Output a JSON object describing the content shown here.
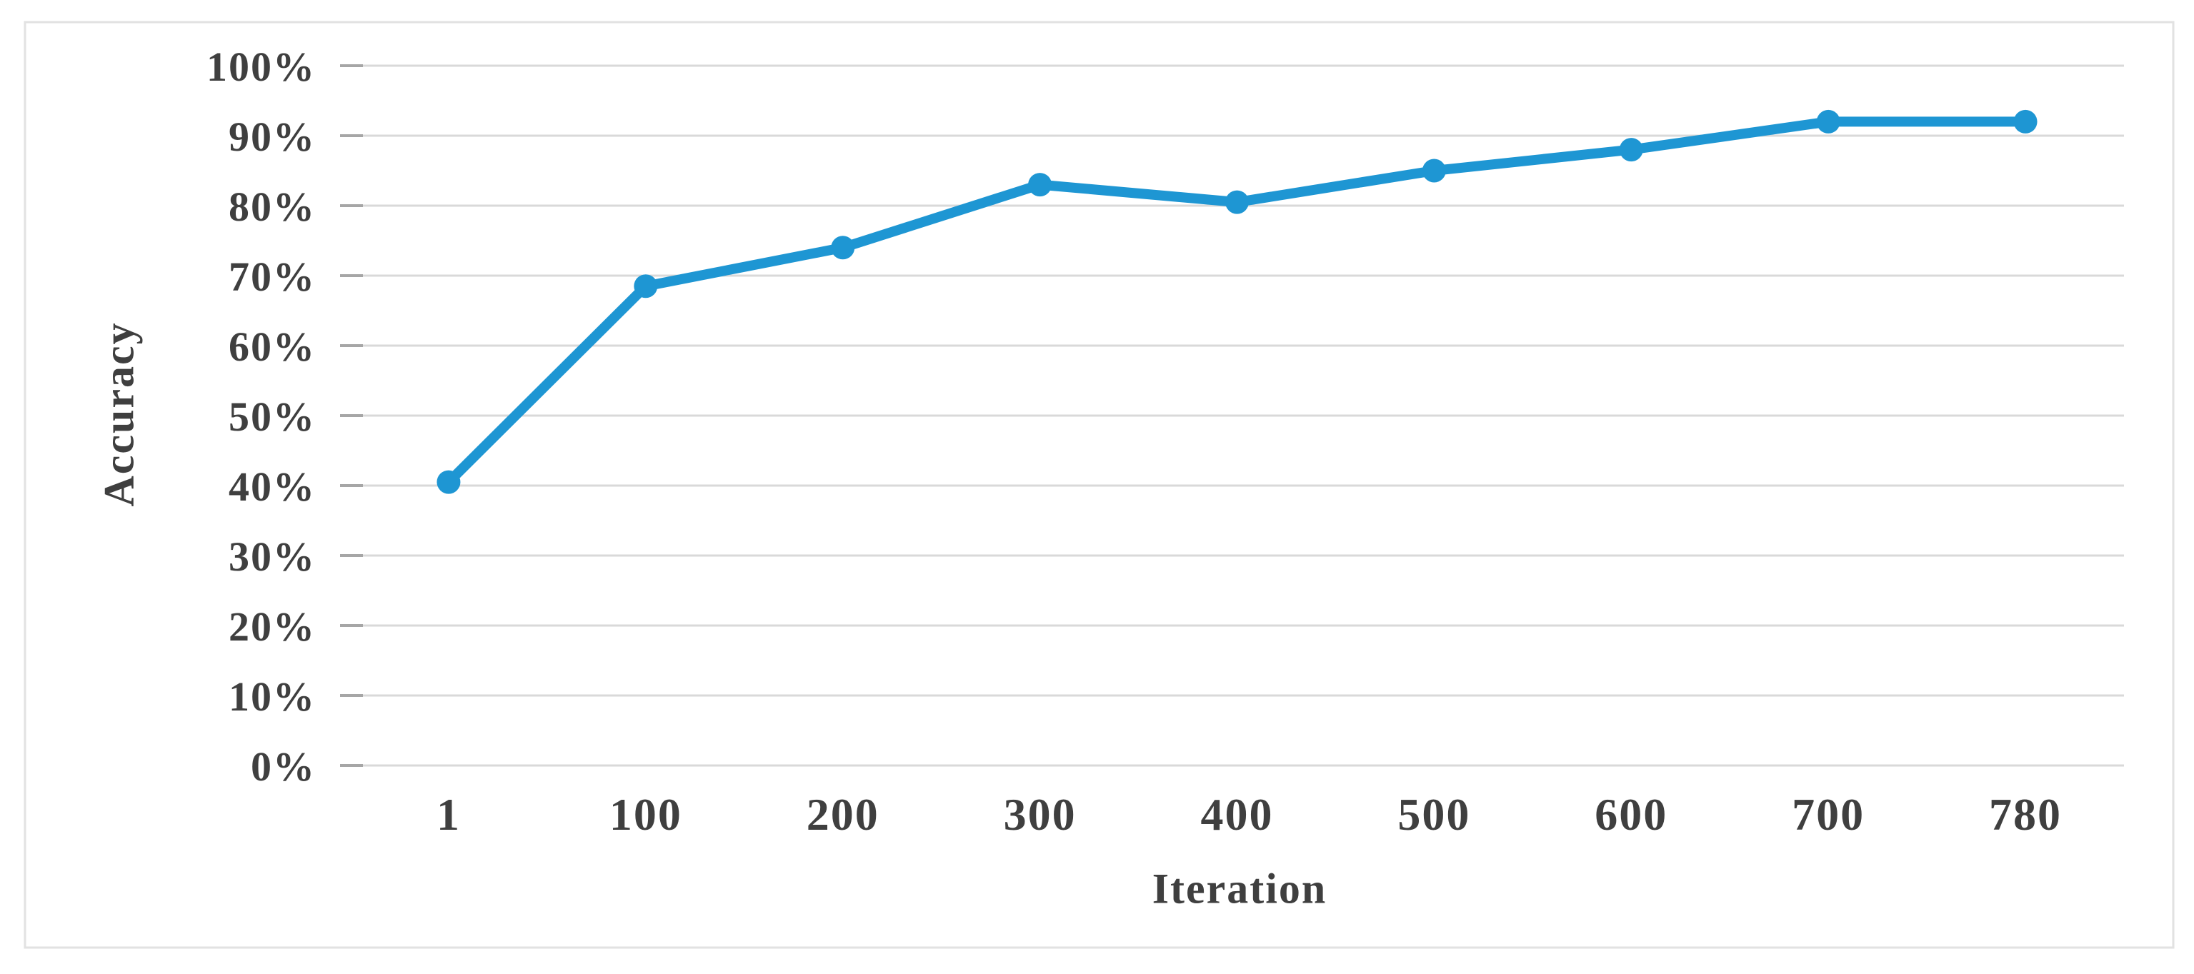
{
  "chart_data": {
    "type": "line",
    "title": "",
    "xlabel": "Iteration",
    "ylabel": "Accuracy",
    "categories": [
      "1",
      "100",
      "200",
      "300",
      "400",
      "500",
      "600",
      "700",
      "780"
    ],
    "series": [
      {
        "name": "Accuracy",
        "values": [
          40.5,
          68.5,
          74,
          83,
          80.5,
          85,
          88,
          92,
          92
        ]
      }
    ],
    "y_ticks": [
      {
        "label": "100%",
        "value": 100
      },
      {
        "label": "90%",
        "value": 90
      },
      {
        "label": "80%",
        "value": 80
      },
      {
        "label": "70%",
        "value": 70
      },
      {
        "label": "60%",
        "value": 60
      },
      {
        "label": "50%",
        "value": 50
      },
      {
        "label": "40%",
        "value": 40
      },
      {
        "label": "30%",
        "value": 30
      },
      {
        "label": "20%",
        "value": 20
      },
      {
        "label": "10%",
        "value": 10
      },
      {
        "label": "0%",
        "value": 0
      }
    ],
    "ylim": [
      0,
      100
    ],
    "grid": "horizontal",
    "legend_position": "none",
    "marker_style": "filled-circle"
  },
  "colors": {
    "line": "#1E96D3",
    "marker": "#1E96D3",
    "gridline": "#D9D9D9",
    "tick_mark": "#A6A6A6",
    "text": "#3F3F3F",
    "chart_border": "#E2E2E2",
    "background": "#FFFFFF"
  }
}
